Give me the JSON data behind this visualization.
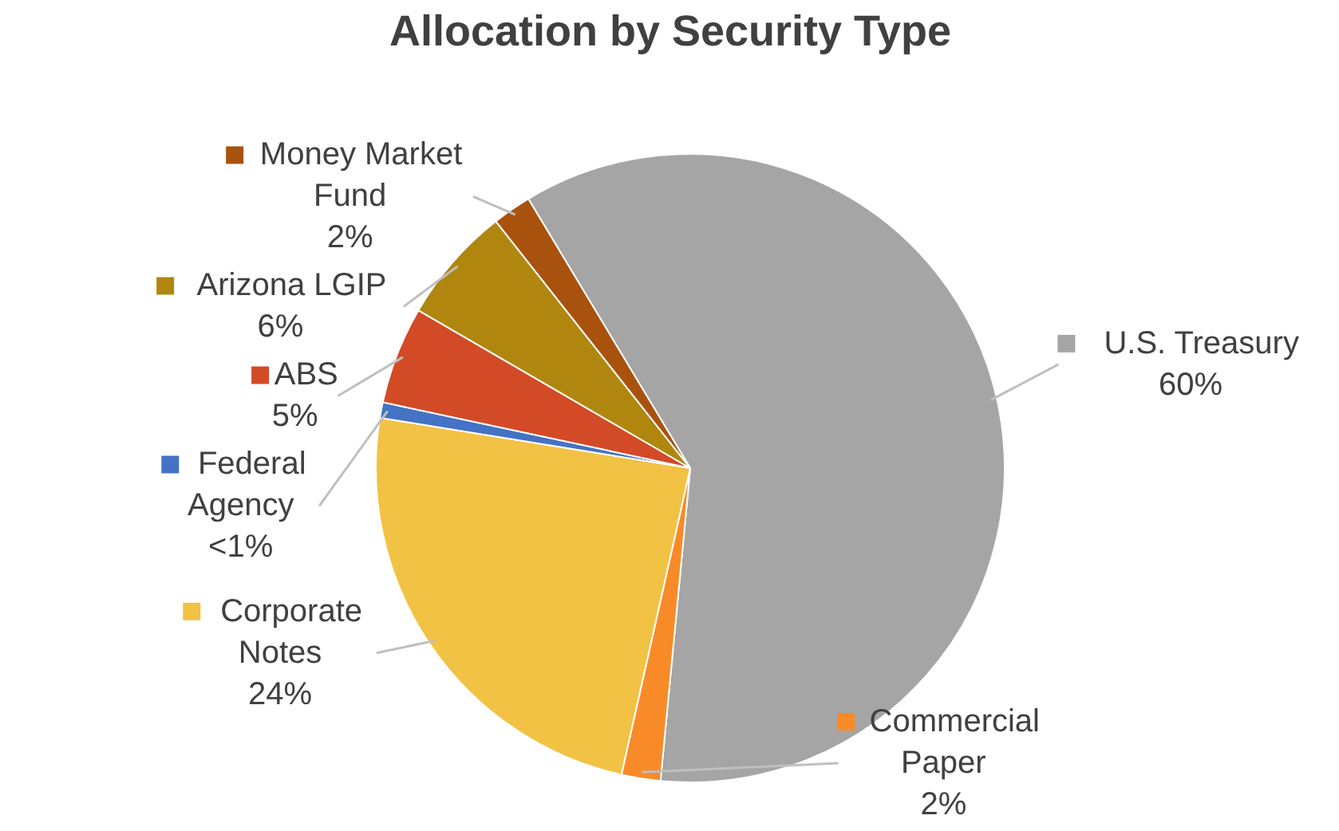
{
  "chart_data": {
    "type": "pie",
    "title": "Allocation by Security Type",
    "categories": [
      "U.S. Treasury",
      "Commercial Paper",
      "Corporate Notes",
      "Federal Agency",
      "ABS",
      "Arizona LGIP",
      "Money Market Fund"
    ],
    "values": [
      60,
      2,
      24,
      0.8,
      5,
      6,
      2
    ],
    "value_labels": [
      "60%",
      "2%",
      "24%",
      "<1%",
      "5%",
      "6%",
      "2%"
    ],
    "colors": [
      "#a5a5a5",
      "#f98a28",
      "#f2c244",
      "#4472c4",
      "#d34a26",
      "#b0860f",
      "#a8520e"
    ],
    "legend": "top right"
  }
}
